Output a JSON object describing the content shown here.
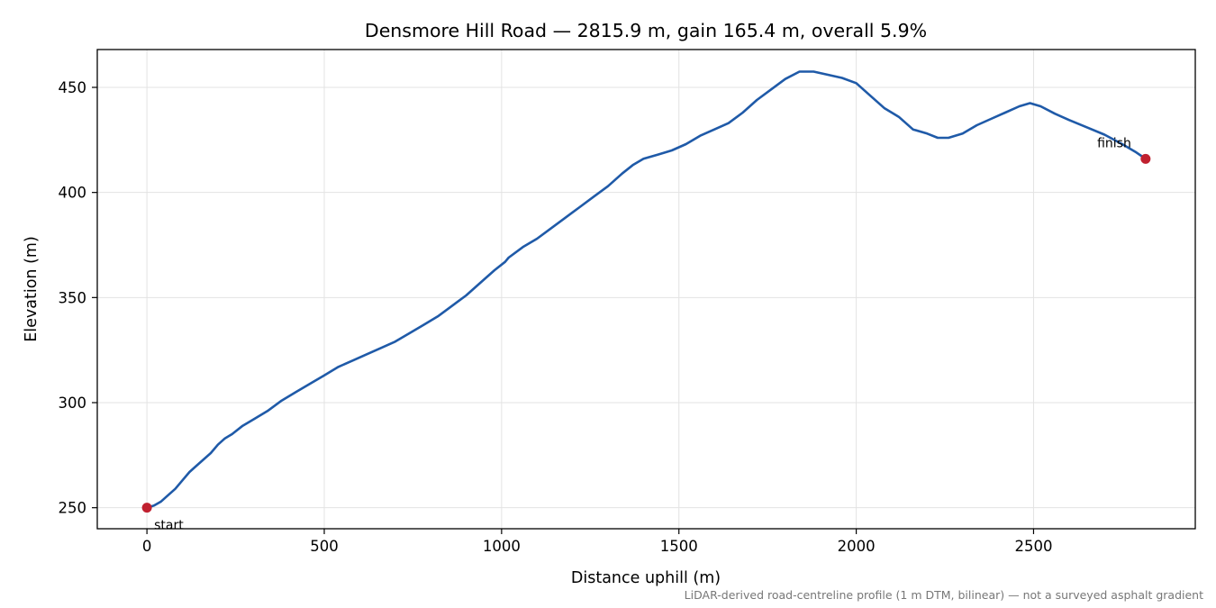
{
  "chart_data": {
    "type": "line",
    "title": "Densmore Hill Road — 2815.9 m, gain 165.4 m, overall 5.9%",
    "xlabel": "Distance uphill (m)",
    "ylabel": "Elevation (m)",
    "footnote": "LiDAR-derived road-centreline profile (1 m DTM, bilinear) — not a surveyed asphalt gradient",
    "xlim": [
      -140,
      2956
    ],
    "ylim": [
      240,
      468
    ],
    "xticks": [
      0,
      500,
      1000,
      1500,
      2000,
      2500
    ],
    "yticks": [
      250,
      300,
      350,
      400,
      450
    ],
    "grid": true,
    "line_color": "#1f5aa8",
    "marker_color": "#c0202f",
    "series": [
      {
        "x": [
          0,
          20,
          40,
          60,
          80,
          100,
          120,
          140,
          160,
          180,
          200,
          220,
          240,
          270,
          300,
          340,
          380,
          420,
          460,
          500,
          540,
          580,
          620,
          660,
          700,
          740,
          780,
          820,
          860,
          900,
          940,
          980,
          1010,
          1020,
          1060,
          1100,
          1140,
          1180,
          1220,
          1260,
          1300,
          1340,
          1370,
          1400,
          1440,
          1480,
          1520,
          1560,
          1600,
          1640,
          1680,
          1720,
          1760,
          1800,
          1840,
          1880,
          1920,
          1960,
          2000,
          2040,
          2080,
          2120,
          2140,
          2160,
          2200,
          2230,
          2260,
          2300,
          2340,
          2380,
          2420,
          2460,
          2490,
          2520,
          2560,
          2600,
          2650,
          2700,
          2750,
          2790,
          2815.9
        ],
        "y": [
          250,
          251,
          253,
          256,
          259,
          263,
          267,
          270,
          273,
          276,
          280,
          283,
          285,
          289,
          292,
          296,
          301,
          305,
          309,
          313,
          317,
          320,
          323,
          326,
          329,
          333,
          337,
          341,
          346,
          351,
          357,
          363,
          367,
          369,
          374,
          378,
          383,
          388,
          393,
          398,
          403,
          409,
          413,
          416,
          418,
          420,
          423,
          427,
          430,
          433,
          438,
          444,
          449,
          454,
          457.5,
          457.5,
          456,
          454.5,
          452,
          446,
          440,
          436,
          433,
          430,
          428,
          426,
          426,
          428,
          432,
          435,
          438,
          441,
          442.5,
          441,
          437.5,
          434.5,
          431,
          427.5,
          423,
          419,
          416
        ]
      }
    ],
    "markers": [
      {
        "label": "start",
        "x": 0,
        "y": 250
      },
      {
        "label": "finish",
        "x": 2815.9,
        "y": 416
      }
    ]
  }
}
